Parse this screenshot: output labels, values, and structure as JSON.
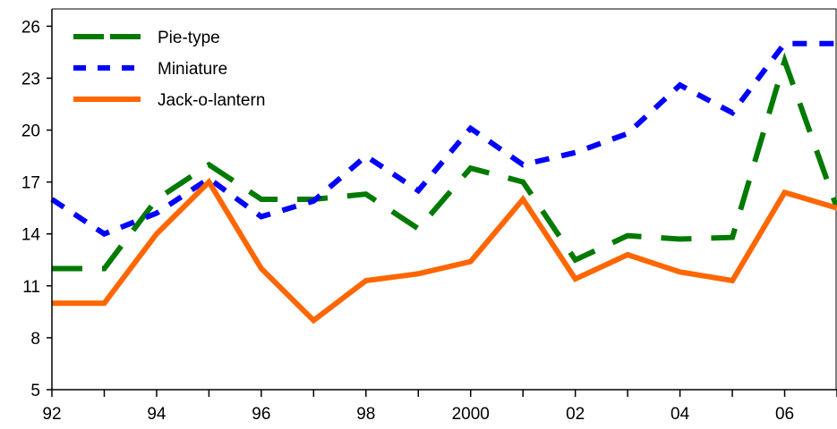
{
  "chart_data": {
    "type": "line",
    "title": "",
    "xlabel": "",
    "ylabel": "",
    "x": [
      1992,
      1993,
      1994,
      1995,
      1996,
      1997,
      1998,
      1999,
      2000,
      2001,
      2002,
      2003,
      2004,
      2005,
      2006,
      2007
    ],
    "x_tick_values": [
      1992,
      1994,
      1996,
      1998,
      2000,
      2002,
      2004,
      2006
    ],
    "x_tick_labels": [
      "92",
      "94",
      "96",
      "98",
      "2000",
      "02",
      "04",
      "06"
    ],
    "y_ticks": [
      5,
      8,
      11,
      14,
      17,
      20,
      23,
      26
    ],
    "ylim": [
      5,
      27
    ],
    "xlim": [
      1992,
      2007
    ],
    "grid": false,
    "legend_position": "top-left",
    "series": [
      {
        "name": "Pie-type",
        "color": "#007a00",
        "style": "long-dash",
        "values": [
          12.0,
          12.0,
          16.0,
          18.0,
          16.0,
          16.0,
          16.3,
          14.3,
          17.8,
          17.0,
          12.5,
          13.9,
          13.7,
          13.8,
          24.0,
          15.5
        ]
      },
      {
        "name": "Miniature",
        "color": "#0000ff",
        "style": "short-dash",
        "values": [
          16.0,
          14.0,
          15.2,
          17.2,
          15.0,
          15.9,
          18.5,
          16.5,
          20.1,
          18.0,
          18.7,
          19.8,
          22.6,
          21.0,
          25.0,
          25.0
        ]
      },
      {
        "name": "Jack-o-lantern",
        "color": "#ff6600",
        "style": "solid",
        "values": [
          10.0,
          10.0,
          14.0,
          17.0,
          12.0,
          9.0,
          11.3,
          11.7,
          12.4,
          16.0,
          11.4,
          12.8,
          11.8,
          11.3,
          16.4,
          15.5
        ]
      }
    ]
  }
}
